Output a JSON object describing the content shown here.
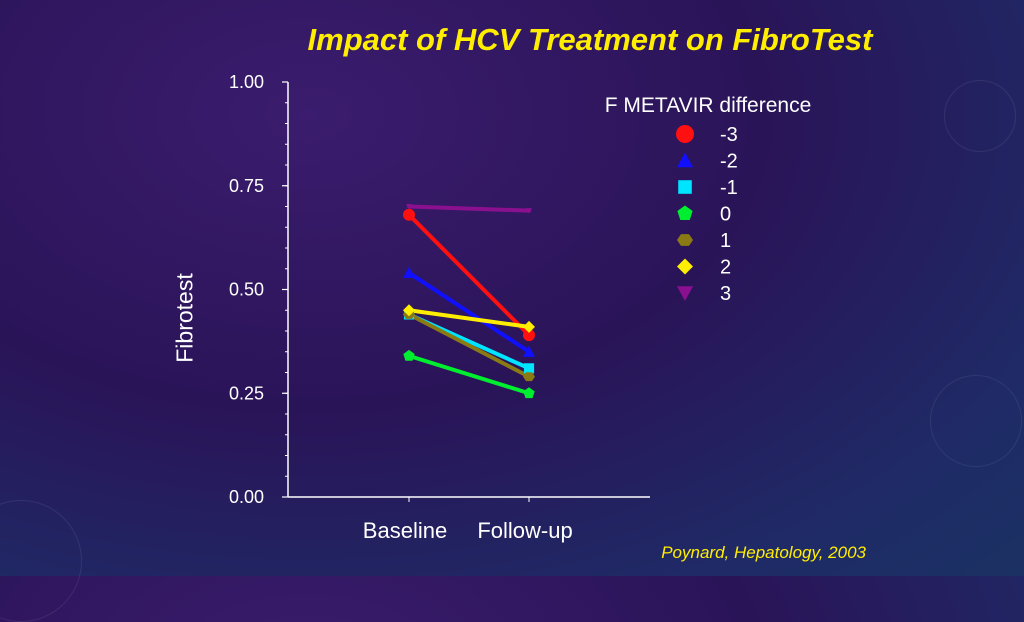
{
  "slide": {
    "title": "Impact of HCV Treatment on FibroTest",
    "citation": "Poynard, Hepatology, 2003"
  },
  "chart_data": {
    "type": "line",
    "title": "Impact of HCV Treatment on FibroTest",
    "xlabel": "",
    "ylabel": "Fibrotest",
    "categories": [
      "Baseline",
      "Follow-up"
    ],
    "ylim": [
      0,
      1.0
    ],
    "yticks": [
      "0.00",
      "0.25",
      "0.50",
      "0.75",
      "1.00"
    ],
    "ytick_values": [
      0,
      0.25,
      0.5,
      0.75,
      1.0
    ],
    "grid": false,
    "legend": {
      "title": "F METAVIR difference",
      "position": "top-right"
    },
    "series": [
      {
        "name": "-3",
        "marker": "circle",
        "color": "#ff1010",
        "values": [
          0.68,
          0.39
        ]
      },
      {
        "name": "-2",
        "marker": "triangle",
        "color": "#1010ff",
        "values": [
          0.54,
          0.35
        ]
      },
      {
        "name": "-1",
        "marker": "square",
        "color": "#00e5ff",
        "values": [
          0.44,
          0.31
        ]
      },
      {
        "name": "0",
        "marker": "pentagon",
        "color": "#00ee30",
        "values": [
          0.34,
          0.25
        ]
      },
      {
        "name": "1",
        "marker": "hexagon",
        "color": "#8a7a14",
        "values": [
          0.44,
          0.29
        ]
      },
      {
        "name": "2",
        "marker": "diamond",
        "color": "#ffee00",
        "values": [
          0.45,
          0.41
        ]
      },
      {
        "name": "3",
        "marker": "triangle-down",
        "color": "#8a1090",
        "values": [
          0.7,
          0.69
        ]
      }
    ]
  }
}
